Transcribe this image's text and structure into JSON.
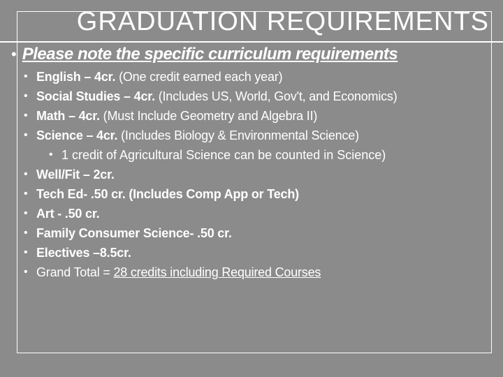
{
  "colors": {
    "background": "#8b8b8b",
    "text": "#ffffff",
    "border": "#ffffff"
  },
  "title": "GRADUATION REQUIREMENTS",
  "subtitle": "Please note the specific curriculum requirements",
  "items": [
    {
      "bold": "English – 4cr.",
      "rest": " (One credit earned each year)"
    },
    {
      "bold": "Social Studies – 4cr.",
      "rest": " (Includes US, World, Gov't, and Economics)"
    },
    {
      "bold": "Math – 4cr.",
      "rest": " (Must Include Geometry and Algebra II)"
    },
    {
      "bold": "Science – 4cr.",
      "rest": " (Includes Biology & Environmental Science)",
      "sub": [
        "1 credit of Agricultural Science can be counted in Science)"
      ]
    },
    {
      "bold": "Well/Fit – 2cr.",
      "rest": ""
    },
    {
      "bold": "Tech Ed- .50 cr. (Includes Comp App or Tech)",
      "rest": ""
    },
    {
      "bold": "Art - .50 cr.",
      "rest": ""
    },
    {
      "bold": "Family Consumer Science- .50 cr.",
      "rest": ""
    },
    {
      "bold": "Electives –8.5cr.",
      "rest": ""
    }
  ],
  "total": {
    "prefix": "Grand Total = ",
    "underlined": "28 credits including Required Courses"
  }
}
